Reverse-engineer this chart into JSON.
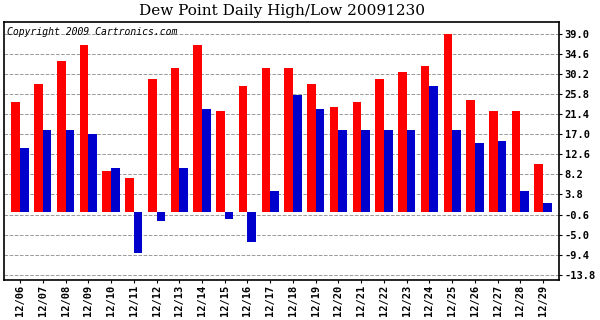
{
  "title": "Dew Point Daily High/Low 20091230",
  "copyright": "Copyright 2009 Cartronics.com",
  "dates": [
    "12/06",
    "12/07",
    "12/08",
    "12/09",
    "12/10",
    "12/11",
    "12/12",
    "12/13",
    "12/14",
    "12/15",
    "12/16",
    "12/17",
    "12/18",
    "12/19",
    "12/20",
    "12/21",
    "12/22",
    "12/23",
    "12/24",
    "12/25",
    "12/26",
    "12/27",
    "12/28",
    "12/29"
  ],
  "high_values": [
    24.0,
    28.0,
    33.0,
    36.5,
    9.0,
    7.5,
    29.0,
    31.5,
    36.5,
    22.0,
    27.5,
    31.5,
    31.5,
    28.0,
    23.0,
    24.0,
    29.0,
    30.5,
    32.0,
    39.0,
    24.5,
    22.0,
    22.0,
    10.5
  ],
  "low_values": [
    14.0,
    18.0,
    18.0,
    17.0,
    9.5,
    -9.0,
    -2.0,
    9.5,
    22.5,
    -1.5,
    -6.5,
    4.5,
    25.5,
    22.5,
    18.0,
    18.0,
    18.0,
    18.0,
    27.5,
    18.0,
    15.0,
    15.5,
    4.5,
    2.0
  ],
  "bar_color_high": "#FF0000",
  "bar_color_low": "#0000CC",
  "background_color": "#FFFFFF",
  "grid_color": "#999999",
  "yticks": [
    39.0,
    34.6,
    30.2,
    25.8,
    21.4,
    17.0,
    12.6,
    8.2,
    3.8,
    -0.6,
    -5.0,
    -9.4,
    -13.8
  ],
  "ylim": [
    -15.0,
    41.5
  ],
  "bar_width": 0.38,
  "title_fontsize": 11,
  "tick_fontsize": 7.5,
  "copyright_fontsize": 7
}
